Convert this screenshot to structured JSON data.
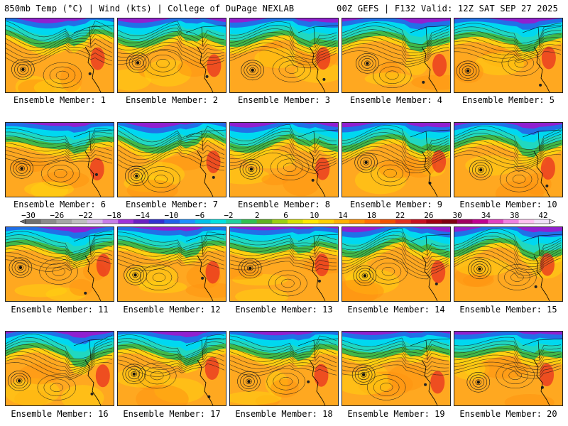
{
  "header": {
    "left": "850mb Temp (°C) | Wind (kts) | College of DuPage NEXLAB",
    "right": "00Z GEFS | F132 Valid: 12Z SAT SEP 27 2025"
  },
  "panels": [
    {
      "label": "Ensemble Member: 1"
    },
    {
      "label": "Ensemble Member: 2"
    },
    {
      "label": "Ensemble Member: 3"
    },
    {
      "label": "Ensemble Member: 4"
    },
    {
      "label": "Ensemble Member: 5"
    },
    {
      "label": "Ensemble Member: 6"
    },
    {
      "label": "Ensemble Member: 7"
    },
    {
      "label": "Ensemble Member: 8"
    },
    {
      "label": "Ensemble Member: 9"
    },
    {
      "label": "Ensemble Member: 10"
    },
    {
      "label": "Ensemble Member: 11"
    },
    {
      "label": "Ensemble Member: 12"
    },
    {
      "label": "Ensemble Member: 13"
    },
    {
      "label": "Ensemble Member: 14"
    },
    {
      "label": "Ensemble Member: 15"
    },
    {
      "label": "Ensemble Member: 16"
    },
    {
      "label": "Ensemble Member: 17"
    },
    {
      "label": "Ensemble Member: 18"
    },
    {
      "label": "Ensemble Member: 19"
    },
    {
      "label": "Ensemble Member: 20"
    }
  ],
  "colorbar": {
    "labels": [
      "−30",
      "−26",
      "−22",
      "−18",
      "−14",
      "−10",
      "−6",
      "−2",
      "2",
      "6",
      "10",
      "14",
      "18",
      "22",
      "26",
      "30",
      "34",
      "38",
      "42"
    ],
    "colors": [
      "#6f6f6f",
      "#8a8a8a",
      "#a5a5a5",
      "#bfbfbf",
      "#d6b8e8",
      "#c77ce8",
      "#a030d8",
      "#6a20c0",
      "#3030d0",
      "#2060e8",
      "#1e90ff",
      "#00bfe8",
      "#00e0e0",
      "#20d0a0",
      "#30c050",
      "#60b020",
      "#9ad010",
      "#d8e000",
      "#ffe800",
      "#ffd000",
      "#ffb000",
      "#ff9000",
      "#ff7000",
      "#f05000",
      "#e03020",
      "#c81020",
      "#a00010",
      "#800010",
      "#a00060",
      "#c00090",
      "#e040c0",
      "#f080e0",
      "#ffc0f0",
      "#f0e0f8"
    ]
  },
  "palette": {
    "warm": "#ffa820",
    "warm2": "#ff9410",
    "yellow": "#ffd010",
    "green": "#40b848",
    "teal": "#20d8c0",
    "cyan": "#00d8f0",
    "blue": "#2070e8",
    "purple": "#9020d0",
    "red": "#e83020"
  }
}
